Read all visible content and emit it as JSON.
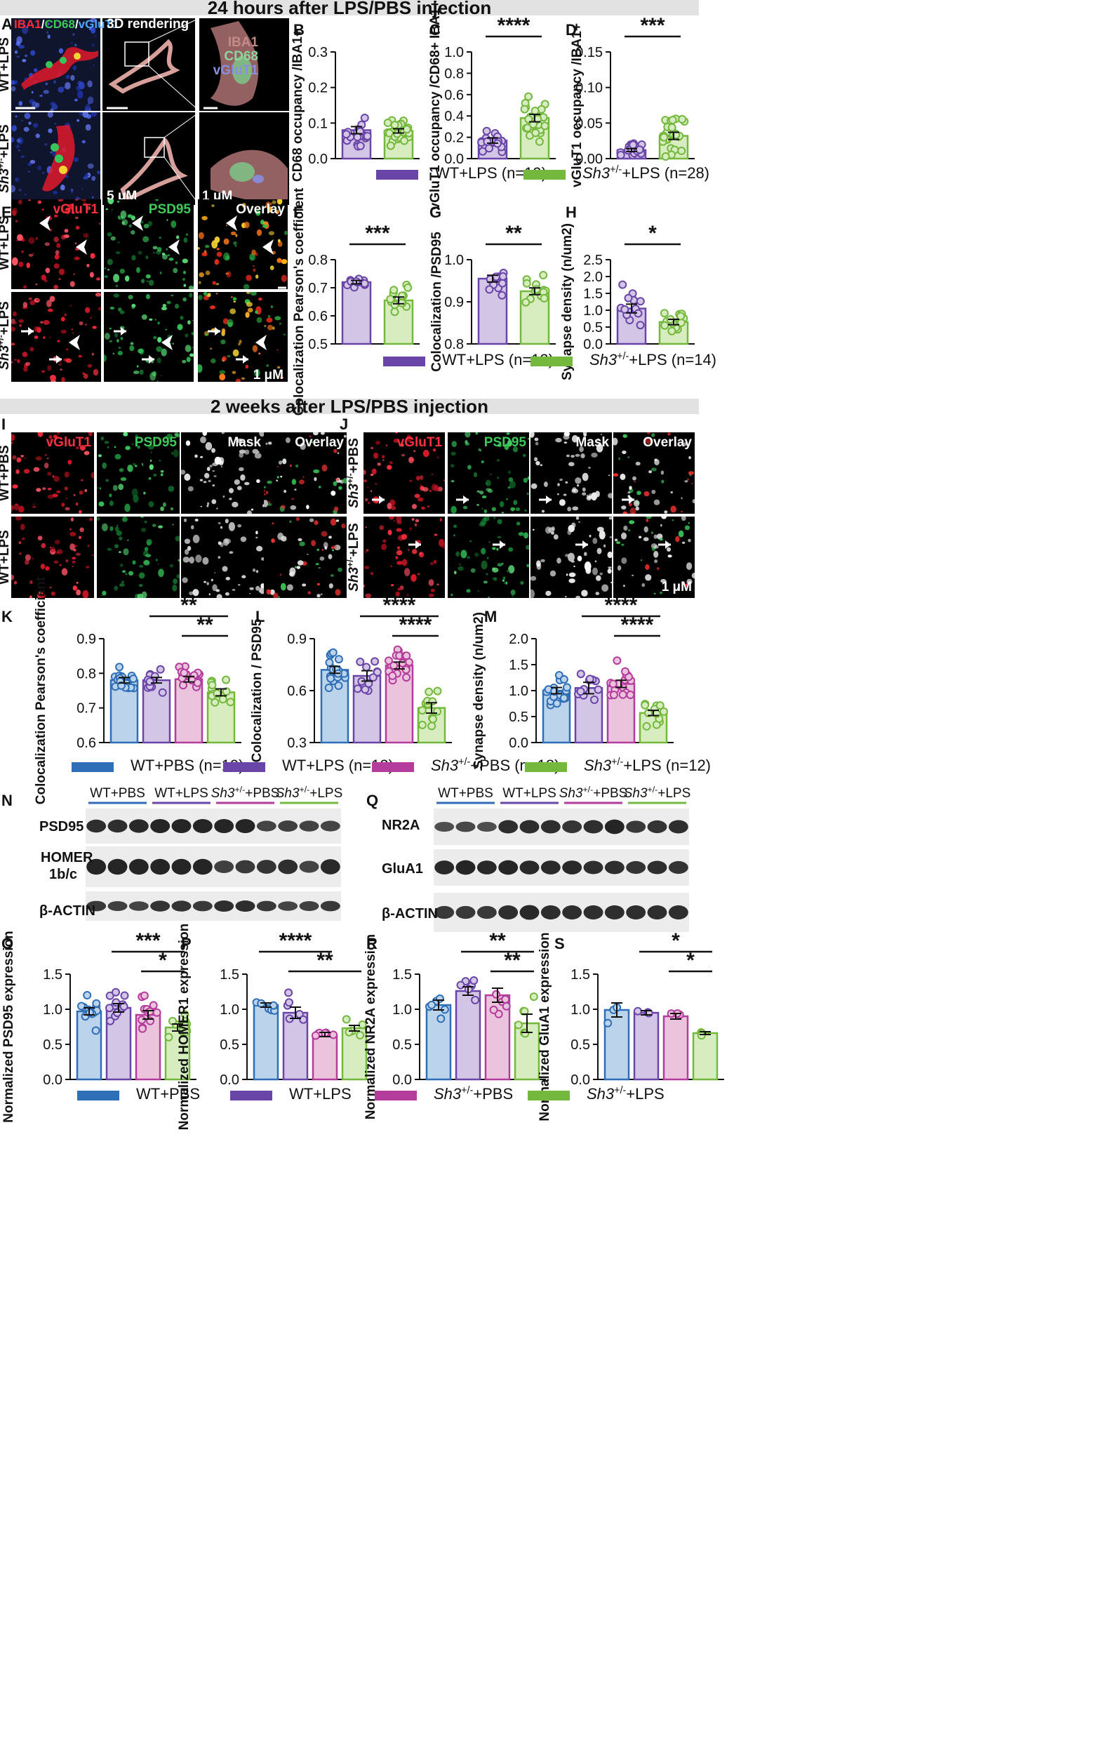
{
  "banners": {
    "top": "24 hours after LPS/PBS injection",
    "mid": "2 weeks after LPS/PBS injection"
  },
  "colors": {
    "wt_pbs": "#2e6fb7",
    "wt_lps": "#6a45a8",
    "sh3_pbs": "#b43c9c",
    "sh3_lps": "#74b83e",
    "wt_pbs_fill": "#bcd3ec",
    "wt_lps_fill": "#d3c5e6",
    "sh3_pbs_fill": "#ecc3dd",
    "sh3_lps_fill": "#d7ecbf"
  },
  "panel_letters": [
    "A",
    "B",
    "C",
    "D",
    "E",
    "F",
    "G",
    "H",
    "I",
    "J",
    "K",
    "L",
    "M",
    "N",
    "O",
    "P",
    "Q",
    "R",
    "S"
  ],
  "panelA": {
    "label_top": "IBA1/CD68/vGluT1",
    "label_3d": "3D rendering",
    "row1": "WT+LPS",
    "row2": "Sh3+/-+LPS",
    "scale_5": "5 μM",
    "scale_1": "1 μM",
    "inset_labels": [
      "IBA1",
      "CD68",
      "vGluT1"
    ]
  },
  "panelE": {
    "cols": [
      "vGluT1",
      "PSD95",
      "Overlay"
    ],
    "rows": [
      "WT+LPS",
      "Sh3+/-+LPS"
    ],
    "scale": "1 μM"
  },
  "panelI": {
    "cols": [
      "vGluT1",
      "PSD95",
      "Mask",
      "Overlay"
    ],
    "rows": [
      "WT+PBS",
      "WT+LPS"
    ]
  },
  "panelJ": {
    "cols": [
      "vGluT1",
      "PSD95",
      "Mask",
      "Overlay"
    ],
    "rows": [
      "Sh3+/-+PBS",
      "Sh3+/-+LPS"
    ],
    "scale": "1 μM"
  },
  "legends": {
    "BCD": [
      "WT+LPS (n=19)",
      "Sh3+/-+LPS (n=28)"
    ],
    "FGH": [
      "WT+LPS (n=12)",
      "Sh3+/-+LPS (n=14)"
    ],
    "KLM": [
      "WT+PBS (n=19)",
      "WT+LPS (n=12)",
      "Sh3+/-+PBS (n=18)",
      "Sh3+/-+LPS (n=12)"
    ],
    "OPRS": [
      "WT+PBS",
      "WT+LPS",
      "Sh3+/-+PBS",
      "Sh3+/-+LPS"
    ]
  },
  "blotN": {
    "groups": [
      "WT+PBS",
      "WT+LPS",
      "Sh3+/-+PBS",
      "Sh3+/-+LPS"
    ],
    "rows": [
      "PSD95",
      "HOMER 1b/c",
      "β-ACTIN"
    ]
  },
  "blotQ": {
    "groups": [
      "WT+PBS",
      "WT+LPS",
      "Sh3+/-+PBS",
      "Sh3+/-+LPS"
    ],
    "rows": [
      "NR2A",
      "GluA1",
      "β-ACTIN"
    ]
  },
  "chart_data": [
    {
      "id": "B",
      "type": "bar",
      "ylabel": "CD68 occupancy /IBA1+",
      "ylim": [
        0,
        0.3
      ],
      "yticks": [
        "0.0",
        "0.1",
        "0.2",
        "0.3"
      ],
      "categories": [
        "WT+LPS",
        "Sh3+/-+LPS"
      ],
      "values": [
        0.08,
        0.078
      ],
      "sem": [
        0.01,
        0.006
      ],
      "significance": []
    },
    {
      "id": "C",
      "type": "bar",
      "ylabel": "vGluT1 occupancy /CD68+ IBA1+",
      "ylim": [
        0,
        1.0
      ],
      "yticks": [
        "0.0",
        "0.2",
        "0.4",
        "0.6",
        "0.8",
        "1.0"
      ],
      "categories": [
        "WT+LPS",
        "Sh3+/-+LPS"
      ],
      "values": [
        0.17,
        0.38
      ],
      "sem": [
        0.025,
        0.035
      ],
      "significance": [
        {
          "from": 0,
          "to": 1,
          "label": "****"
        }
      ]
    },
    {
      "id": "D",
      "type": "bar",
      "ylabel": "vGluT1 occupancy /IBA1+",
      "ylim": [
        0,
        0.15
      ],
      "yticks": [
        "0.00",
        "0.05",
        "0.10",
        "0.15"
      ],
      "categories": [
        "WT+LPS",
        "Sh3+/-+LPS"
      ],
      "values": [
        0.012,
        0.032
      ],
      "sem": [
        0.002,
        0.005
      ],
      "significance": [
        {
          "from": 0,
          "to": 1,
          "label": "***"
        }
      ]
    },
    {
      "id": "F",
      "type": "bar",
      "ylabel": "Colocalization Pearson's coefficient",
      "ylim": [
        0.5,
        0.8
      ],
      "yticks": [
        "0.5",
        "0.6",
        "0.7",
        "0.8"
      ],
      "categories": [
        "WT+LPS",
        "Sh3+/-+LPS"
      ],
      "values": [
        0.72,
        0.655
      ],
      "sem": [
        0.006,
        0.012
      ],
      "significance": [
        {
          "from": 0,
          "to": 1,
          "label": "***"
        }
      ]
    },
    {
      "id": "G",
      "type": "bar",
      "ylabel": "Colocalization /PSD95",
      "ylim": [
        0.8,
        1.0
      ],
      "yticks": [
        "0.8",
        "0.9",
        "1.0"
      ],
      "categories": [
        "WT+LPS",
        "Sh3+/-+LPS"
      ],
      "values": [
        0.955,
        0.925
      ],
      "sem": [
        0.008,
        0.008
      ],
      "significance": [
        {
          "from": 0,
          "to": 1,
          "label": "**"
        }
      ]
    },
    {
      "id": "H",
      "type": "bar",
      "ylabel": "Synapse density (n/um2)",
      "ylim": [
        0,
        2.5
      ],
      "yticks": [
        "0.0",
        "0.5",
        "1.0",
        "1.5",
        "2.0",
        "2.5"
      ],
      "categories": [
        "WT+LPS",
        "Sh3+/-+LPS"
      ],
      "values": [
        1.05,
        0.65
      ],
      "sem": [
        0.13,
        0.08
      ],
      "significance": [
        {
          "from": 0,
          "to": 1,
          "label": "*"
        }
      ]
    },
    {
      "id": "K",
      "type": "bar",
      "ylabel": "Colocalization Pearson's coefficient",
      "ylim": [
        0.6,
        0.9
      ],
      "yticks": [
        "0.6",
        "0.7",
        "0.8",
        "0.9"
      ],
      "categories": [
        "WT+PBS",
        "WT+LPS",
        "Sh3+/-+PBS",
        "Sh3+/-+LPS"
      ],
      "values": [
        0.78,
        0.78,
        0.783,
        0.745
      ],
      "sem": [
        0.008,
        0.008,
        0.008,
        0.01
      ],
      "significance": [
        {
          "from": 1,
          "to": 3,
          "label": "**"
        },
        {
          "from": 2,
          "to": 3,
          "label": "**"
        }
      ]
    },
    {
      "id": "L",
      "type": "bar",
      "ylabel": "Colocalization / PSD95",
      "ylim": [
        0.3,
        0.9
      ],
      "yticks": [
        "0.3",
        "0.6",
        "0.9"
      ],
      "categories": [
        "WT+PBS",
        "WT+LPS",
        "Sh3+/-+PBS",
        "Sh3+/-+LPS"
      ],
      "values": [
        0.72,
        0.685,
        0.745,
        0.5
      ],
      "sem": [
        0.02,
        0.03,
        0.02,
        0.03
      ],
      "significance": [
        {
          "from": 1,
          "to": 3,
          "label": "****"
        },
        {
          "from": 2,
          "to": 3,
          "label": "****"
        }
      ]
    },
    {
      "id": "M",
      "type": "bar",
      "ylabel": "Synapse density (n/um2)",
      "ylim": [
        0,
        2.0
      ],
      "yticks": [
        "0.0",
        "0.5",
        "1.0",
        "1.5",
        "2.0"
      ],
      "categories": [
        "WT+PBS",
        "WT+LPS",
        "Sh3+/-+PBS",
        "Sh3+/-+LPS"
      ],
      "values": [
        1.0,
        1.05,
        1.13,
        0.57
      ],
      "sem": [
        0.06,
        0.11,
        0.07,
        0.05
      ],
      "significance": [
        {
          "from": 1,
          "to": 3,
          "label": "****"
        },
        {
          "from": 2,
          "to": 3,
          "label": "****"
        }
      ]
    },
    {
      "id": "O",
      "type": "bar",
      "ylabel": "Normalized PSD95 expression",
      "ylim": [
        0,
        1.5
      ],
      "yticks": [
        "0.0",
        "0.5",
        "1.0",
        "1.5"
      ],
      "categories": [
        "WT+PBS",
        "WT+LPS",
        "Sh3+/-+PBS",
        "Sh3+/-+LPS"
      ],
      "values": [
        0.97,
        1.02,
        0.92,
        0.74
      ],
      "sem": [
        0.05,
        0.06,
        0.06,
        0.05
      ],
      "significance": [
        {
          "from": 1,
          "to": 3,
          "label": "***"
        },
        {
          "from": 2,
          "to": 3,
          "label": "*"
        }
      ]
    },
    {
      "id": "P",
      "type": "bar",
      "ylabel": "Normalized HOMER1 expression",
      "ylim": [
        0,
        1.5
      ],
      "yticks": [
        "0.0",
        "0.5",
        "1.0",
        "1.5"
      ],
      "categories": [
        "WT+PBS",
        "WT+LPS",
        "Sh3+/-+PBS",
        "Sh3+/-+LPS"
      ],
      "values": [
        1.06,
        0.95,
        0.64,
        0.73
      ],
      "sem": [
        0.03,
        0.08,
        0.03,
        0.04
      ],
      "significance": [
        {
          "from": 0,
          "to": 2,
          "label": "****"
        },
        {
          "from": 1,
          "to": 3,
          "label": "**"
        }
      ]
    },
    {
      "id": "R",
      "type": "bar",
      "ylabel": "Normalized NR2A expression",
      "ylim": [
        0,
        1.5
      ],
      "yticks": [
        "0.0",
        "0.5",
        "1.0",
        "1.5"
      ],
      "categories": [
        "WT+PBS",
        "WT+LPS",
        "Sh3+/-+PBS",
        "Sh3+/-+LPS"
      ],
      "values": [
        1.06,
        1.26,
        1.2,
        0.8
      ],
      "sem": [
        0.07,
        0.06,
        0.1,
        0.13
      ],
      "significance": [
        {
          "from": 1,
          "to": 3,
          "label": "**"
        },
        {
          "from": 2,
          "to": 3,
          "label": "**"
        }
      ]
    },
    {
      "id": "S",
      "type": "bar",
      "ylabel": "Normalized GluA1 expression",
      "ylim": [
        0,
        1.5
      ],
      "yticks": [
        "0.0",
        "0.5",
        "1.0",
        "1.5"
      ],
      "categories": [
        "WT+PBS",
        "WT+LPS",
        "Sh3+/-+PBS",
        "Sh3+/-+LPS"
      ],
      "values": [
        0.99,
        0.95,
        0.9,
        0.66
      ],
      "sem": [
        0.1,
        0.03,
        0.04,
        0.02
      ],
      "significance": [
        {
          "from": 1,
          "to": 3,
          "label": "*"
        },
        {
          "from": 2,
          "to": 3,
          "label": "*"
        }
      ]
    }
  ]
}
